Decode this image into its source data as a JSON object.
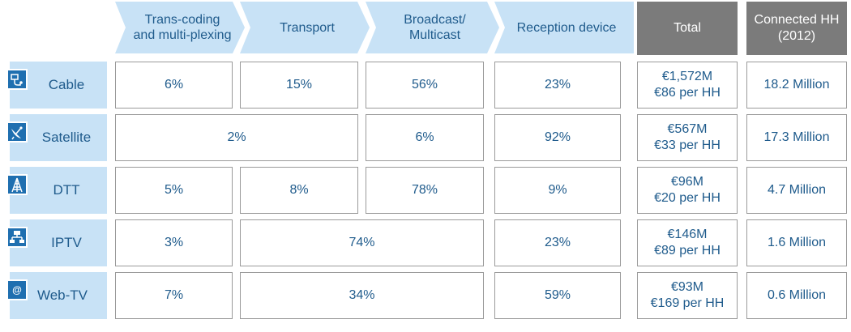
{
  "headers": {
    "transcoding": "Trans-coding and multi-plexing",
    "transport": "Transport",
    "broadcast": "Broadcast/ Multicast",
    "reception": "Reception device",
    "total": "Total",
    "connected": "Connected HH (2012)"
  },
  "rows": [
    {
      "label": "Cable",
      "icon": "cable-icon",
      "transcoding": "6%",
      "transport": "15%",
      "broadcast": "56%",
      "reception": "23%",
      "total_amount": "€1,572M",
      "total_per_hh": "€86 per HH",
      "connected": "18.2 Million"
    },
    {
      "label": "Satellite",
      "icon": "satellite-dish-icon",
      "transcoding_transport": "2%",
      "broadcast": "6%",
      "reception": "92%",
      "total_amount": "€567M",
      "total_per_hh": "€33 per HH",
      "connected": "17.3 Million"
    },
    {
      "label": "DTT",
      "icon": "tower-icon",
      "transcoding": "5%",
      "transport": "8%",
      "broadcast": "78%",
      "reception": "9%",
      "total_amount": "€96M",
      "total_per_hh": "€20 per HH",
      "connected": "4.7 Million"
    },
    {
      "label": "IPTV",
      "icon": "network-icon",
      "transcoding": "3%",
      "transport_broadcast": "74%",
      "reception": "23%",
      "total_amount": "€146M",
      "total_per_hh": "€89 per HH",
      "connected": "1.6 Million"
    },
    {
      "label": "Web-TV",
      "icon": "at-sign-icon",
      "icon_glyph": "@",
      "transcoding": "7%",
      "transport_broadcast": "34%",
      "reception": "59%",
      "total_amount": "€93M",
      "total_per_hh": "€169 per HH",
      "connected": "0.6 Million"
    }
  ],
  "colors": {
    "header_fill": "#c8e2f6",
    "icon_fill": "#1f6fb0",
    "gray_header": "#7b7b7b",
    "text": "#1f5b8c",
    "cell_border": "#9a9a9a"
  }
}
